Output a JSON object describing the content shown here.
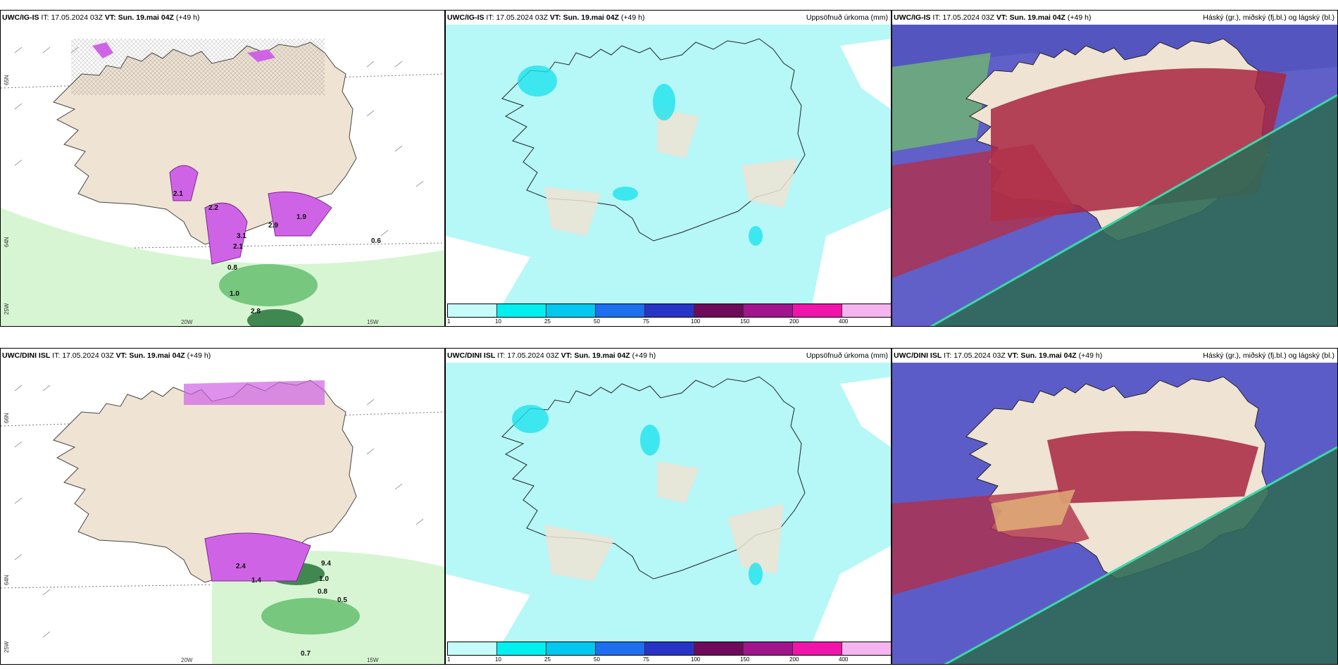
{
  "colors": {
    "land": "#efe3d3",
    "precip": "#b6f7f7",
    "precip_strong": "#1fe2ec",
    "snow_magenta": "#cf63e6",
    "rain_green": "#3fae52",
    "high_cloud": "#5c5cc9",
    "mid_cloud": "#a8263f",
    "low_cloud": "#2f6a56"
  },
  "rows": [
    {
      "model": "UWC/IG-IS",
      "it_label": "IT:",
      "it_value": "17.05.2024 03Z",
      "vt_label": "VT:",
      "vt_value": "Sun. 19.mai 04Z",
      "lead": "(+49 h)",
      "axis": {
        "lat_top": "65N",
        "lat_mid": "64N",
        "lat_bot": "25W",
        "lon_left": "20W",
        "lon_right": "15W"
      },
      "labels": [
        "2.1",
        "2.9",
        "1.9",
        "2.2",
        "3.1",
        "2.1",
        "0.8",
        "1.0",
        "2.8",
        "0.6"
      ]
    },
    {
      "model": "UWC/DINI ISL",
      "it_label": "IT:",
      "it_value": "17.05.2024 03Z",
      "vt_label": "VT:",
      "vt_value": "Sun. 19.mai 04Z",
      "lead": "(+49 h)",
      "axis": {
        "lat_top": "66N",
        "lat_mid": "64N",
        "lat_bot": "25W",
        "lon_left": "20W",
        "lon_right": "15W"
      },
      "labels": [
        "2.4",
        "1.4",
        "9.4",
        "1.0",
        "0.8",
        "0.5",
        "0.7"
      ]
    }
  ],
  "precip_title": "Uppsöfnuð úrkoma (mm)",
  "cloud_title": "Háský (gr.), miðský (fj.bl.) og lágský (bl.)",
  "colorbar": {
    "ticks": [
      "1",
      "10",
      "25",
      "50",
      "75",
      "100",
      "150",
      "200",
      "400"
    ],
    "colors": [
      "#c6fbfb",
      "#00f0f0",
      "#00c8f0",
      "#1e6ef0",
      "#2834c8",
      "#6e0a5a",
      "#a0148c",
      "#f014aa",
      "#f5b4f0"
    ]
  }
}
